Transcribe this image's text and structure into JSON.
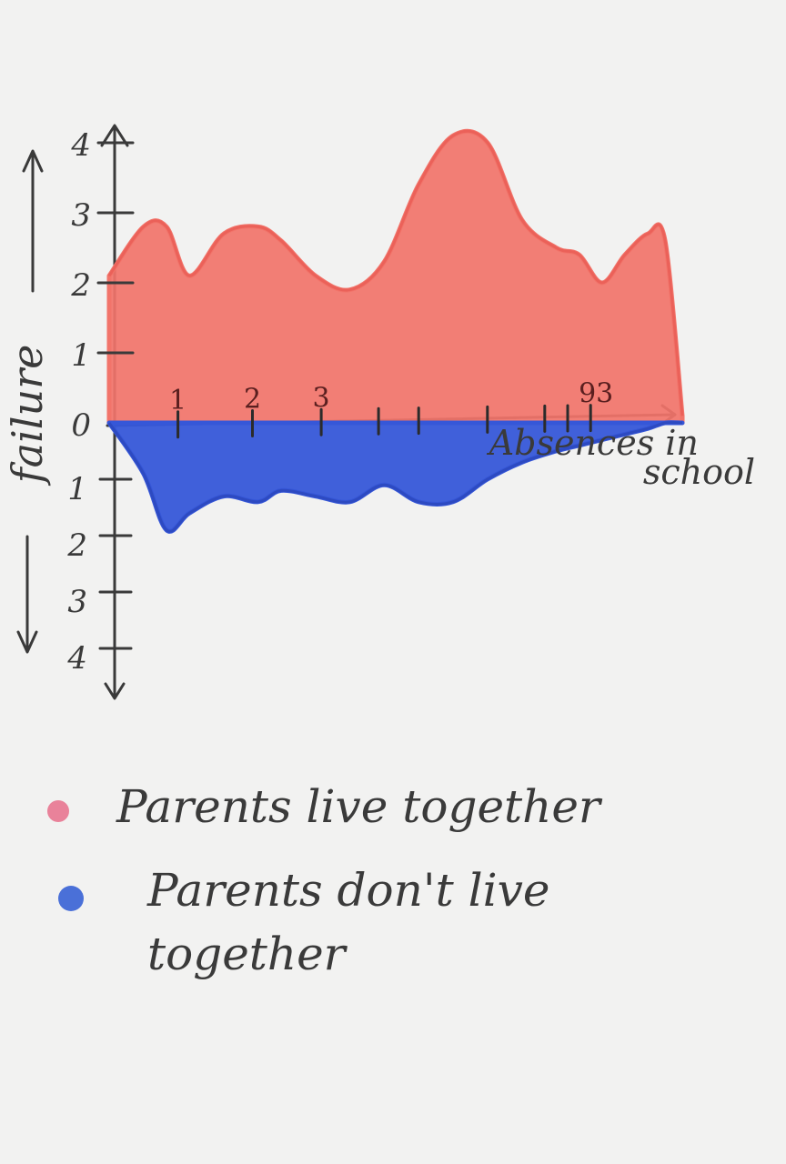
{
  "chart_data": {
    "type": "area",
    "title": "",
    "xlabel": "Absences in school",
    "ylabel": "failure",
    "x_tick_labels": [
      "1",
      "2",
      "3",
      "93"
    ],
    "y_tick_labels_up": [
      "0",
      "1",
      "2",
      "3",
      "4"
    ],
    "y_tick_labels_down": [
      "1",
      "2",
      "3",
      "4"
    ],
    "ylim": [
      -4,
      4
    ],
    "grid": false,
    "legend_position": "bottom",
    "x": [
      0,
      0.06,
      0.1,
      0.14,
      0.2,
      0.26,
      0.3,
      0.36,
      0.42,
      0.48,
      0.54,
      0.6,
      0.66,
      0.72,
      0.78,
      0.82,
      0.86,
      0.9,
      0.94,
      0.97,
      1.0
    ],
    "series": [
      {
        "name": "Parents live together",
        "color": "#f2746a",
        "values": [
          2.1,
          2.8,
          2.8,
          2.1,
          2.7,
          2.8,
          2.6,
          2.1,
          1.9,
          2.3,
          3.4,
          4.1,
          4.0,
          2.9,
          2.5,
          2.4,
          2.0,
          2.4,
          2.7,
          2.6,
          0.1
        ]
      },
      {
        "name": "Parents don't live together",
        "color": "#3657d8",
        "values": [
          0.0,
          -0.9,
          -1.9,
          -1.6,
          -1.3,
          -1.4,
          -1.2,
          -1.3,
          -1.4,
          -1.1,
          -1.4,
          -1.4,
          -1.0,
          -0.7,
          -0.5,
          -0.4,
          -0.3,
          -0.2,
          -0.1,
          0.0,
          0.0
        ]
      }
    ]
  },
  "legend": [
    {
      "label": "Parents live together",
      "color": "#e9829a"
    },
    {
      "label": "Parents don't live together",
      "color": "#4a70d8"
    }
  ]
}
